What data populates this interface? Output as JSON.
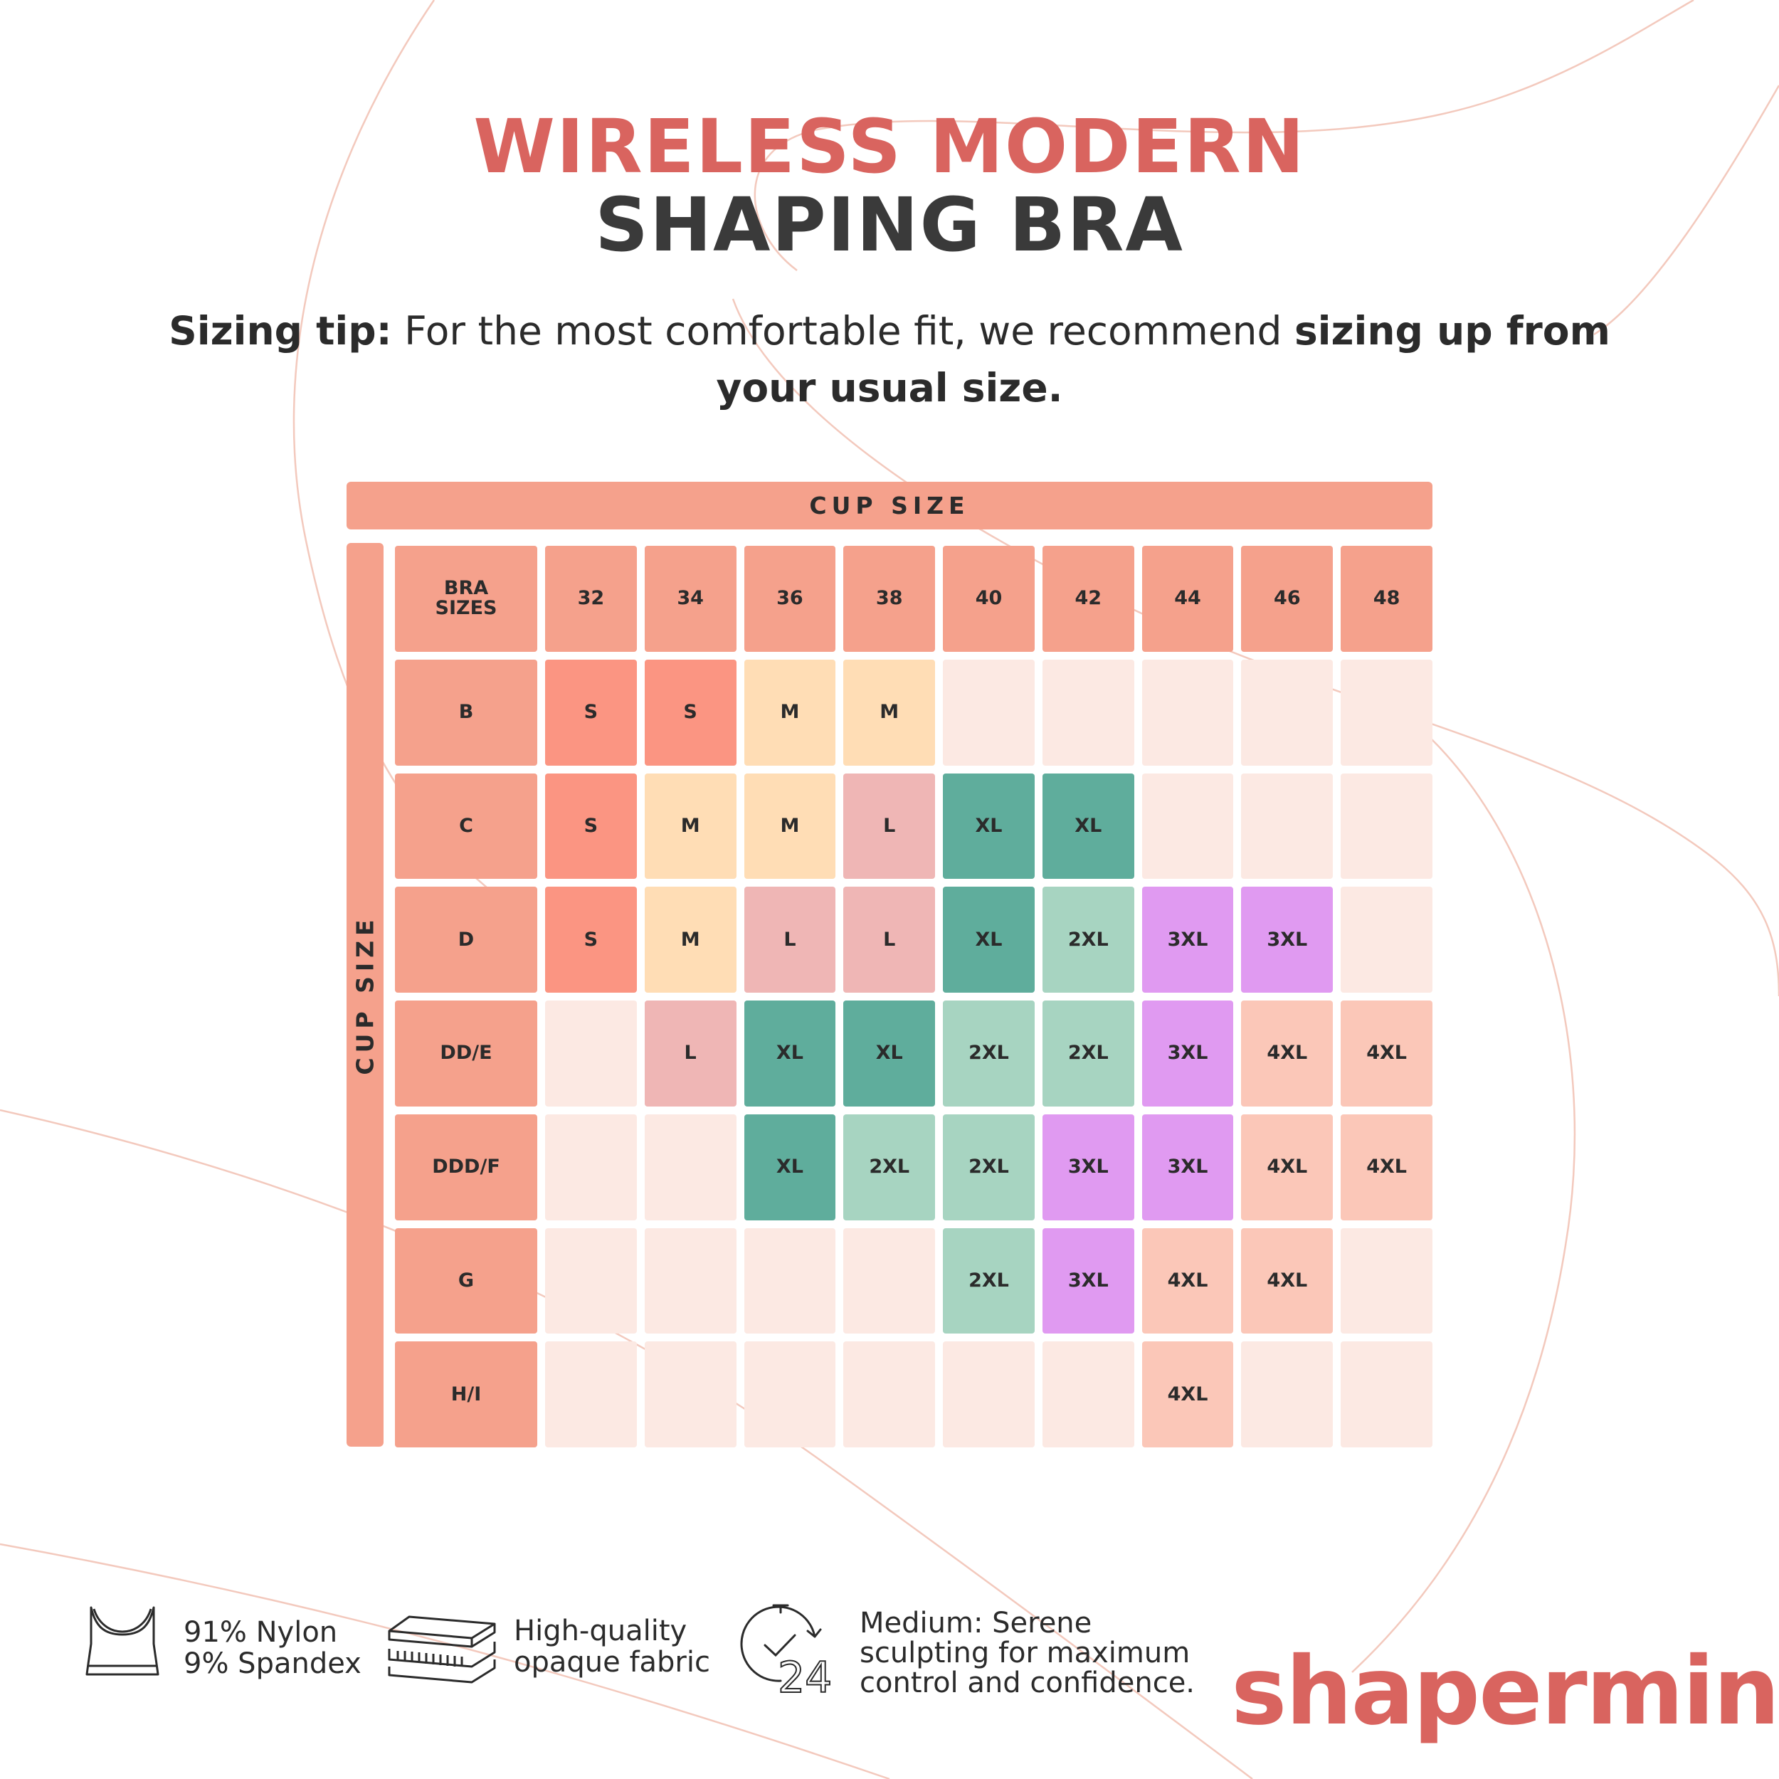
{
  "colors": {
    "coral": "#d9645f",
    "header": "#f5a18c",
    "empty": "#fce9e3",
    "S": "#fb9582",
    "M": "#ffddb5",
    "L": "#efb6b5",
    "XL": "#5fad9c",
    "2XL": "#a7d4c1",
    "3XL": "#e09af1",
    "4XL": "#fbc7b8"
  },
  "title": {
    "line1": "WIRELESS MODERN",
    "line2": "SHAPING BRA"
  },
  "tip": {
    "label": "Sizing tip:",
    "text": " For the most comfortable fit, we recommend ",
    "emphasis": "sizing up from your usual size."
  },
  "table": {
    "top_header": "CUP SIZE",
    "side_header": "CUP SIZE",
    "corner_label": "BRA SIZES",
    "band_sizes": [
      "32",
      "34",
      "36",
      "38",
      "40",
      "42",
      "44",
      "46",
      "48"
    ],
    "rows": [
      {
        "cup": "B",
        "cells": [
          "S",
          "S",
          "M",
          "M",
          "",
          "",
          "",
          "",
          ""
        ]
      },
      {
        "cup": "C",
        "cells": [
          "S",
          "M",
          "M",
          "L",
          "XL",
          "XL",
          "",
          "",
          ""
        ]
      },
      {
        "cup": "D",
        "cells": [
          "S",
          "M",
          "L",
          "L",
          "XL",
          "2XL",
          "3XL",
          "3XL",
          ""
        ]
      },
      {
        "cup": "DD/E",
        "cells": [
          "",
          "L",
          "XL",
          "XL",
          "2XL",
          "2XL",
          "3XL",
          "4XL",
          "4XL"
        ]
      },
      {
        "cup": "DDD/F",
        "cells": [
          "",
          "",
          "XL",
          "2XL",
          "2XL",
          "3XL",
          "3XL",
          "4XL",
          "4XL"
        ]
      },
      {
        "cup": "G",
        "cells": [
          "",
          "",
          "",
          "",
          "2XL",
          "3XL",
          "4XL",
          "4XL",
          ""
        ]
      },
      {
        "cup": "H/I",
        "cells": [
          "",
          "",
          "",
          "",
          "",
          "",
          "4XL",
          "",
          ""
        ]
      }
    ]
  },
  "features": [
    {
      "icon": "bra-icon",
      "lines": [
        "91% Nylon",
        "9% Spandex"
      ]
    },
    {
      "icon": "fabric-layers-icon",
      "lines": [
        "High-quality",
        "opaque fabric"
      ]
    },
    {
      "icon": "clock-24-icon",
      "lines": [
        "Medium: Serene",
        "sculpting for maximum",
        "control and confidence."
      ]
    }
  ],
  "clock_label": "24",
  "logo": "shapermint"
}
